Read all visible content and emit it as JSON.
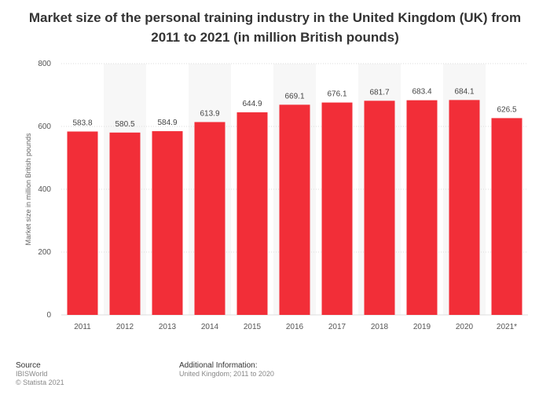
{
  "chart_data": {
    "type": "bar",
    "title": "Market size of the personal training industry in the United Kingdom (UK) from 2011 to 2021 (in million British pounds)",
    "categories": [
      "2011",
      "2012",
      "2013",
      "2014",
      "2015",
      "2016",
      "2017",
      "2018",
      "2019",
      "2020",
      "2021*"
    ],
    "values": [
      583.8,
      580.5,
      584.9,
      613.9,
      644.9,
      669.1,
      676.1,
      681.7,
      683.4,
      684.1,
      626.5
    ],
    "value_labels": [
      "583.8",
      "580.5",
      "584.9",
      "613.9",
      "644.9",
      "669.1",
      "676.1",
      "681.7",
      "683.4",
      "684.1",
      "626.5"
    ],
    "xlabel": "",
    "ylabel": "Market size in million British pounds",
    "ylim": [
      0,
      800
    ],
    "yticks": [
      0,
      200,
      400,
      600,
      800
    ],
    "ytick_labels": [
      "0",
      "200",
      "400",
      "600",
      "800"
    ],
    "bar_color": "#f22e38",
    "grid": true
  },
  "footer": {
    "source_heading": "Source",
    "source_name": "IBISWorld",
    "copyright": "© Statista 2021",
    "info_heading": "Additional Information:",
    "info_text": "United Kingdom; 2011 to 2020"
  }
}
